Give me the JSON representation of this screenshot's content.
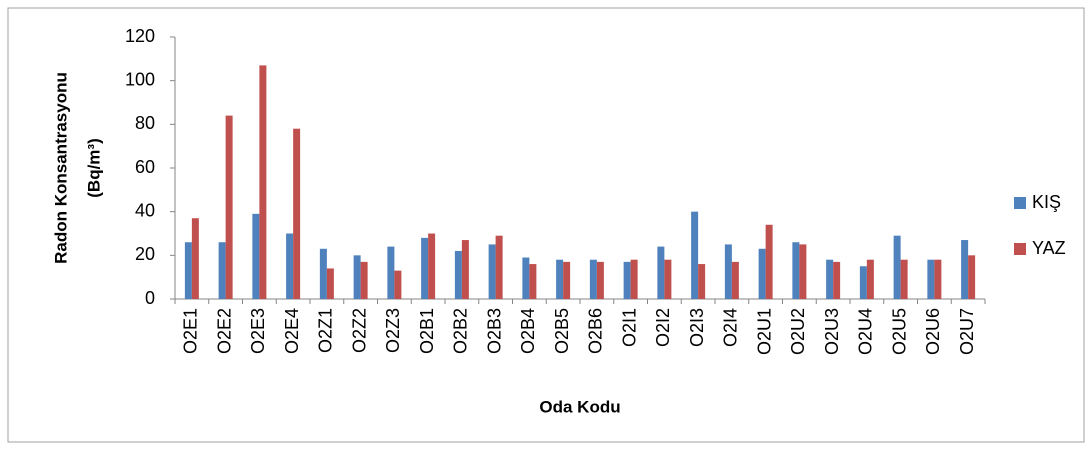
{
  "chart_data": {
    "type": "bar",
    "y_label": [
      "Radon Konsantrasyonu",
      "(Bq/m³)"
    ],
    "x_label": "Oda Kodu",
    "categories": [
      "O2E1",
      "O2E2",
      "O2E3",
      "O2E4",
      "O2Z1",
      "O2Z2",
      "O2Z3",
      "O2B1",
      "O2B2",
      "O2B3",
      "O2B4",
      "O2B5",
      "O2B6",
      "O2I1",
      "O2I2",
      "O2I3",
      "O2I4",
      "O2U1",
      "O2U2",
      "O2U3",
      "O2U4",
      "O2U5",
      "O2U6",
      "O2U7"
    ],
    "series": [
      {
        "name": "KIŞ",
        "color": "#4f81bd",
        "values": [
          26,
          26,
          39,
          30,
          23,
          20,
          24,
          28,
          22,
          25,
          19,
          18,
          18,
          17,
          24,
          40,
          25,
          23,
          26,
          18,
          15,
          29,
          18,
          27
        ]
      },
      {
        "name": "YAZ",
        "color": "#c0504d",
        "values": [
          37,
          84,
          107,
          78,
          14,
          17,
          13,
          30,
          27,
          29,
          16,
          17,
          17,
          18,
          18,
          16,
          17,
          34,
          25,
          17,
          18,
          18,
          18,
          20
        ]
      }
    ],
    "ylim": [
      0,
      120
    ],
    "yticks": [
      0,
      20,
      40,
      60,
      80,
      100,
      120
    ],
    "legend": "right"
  }
}
